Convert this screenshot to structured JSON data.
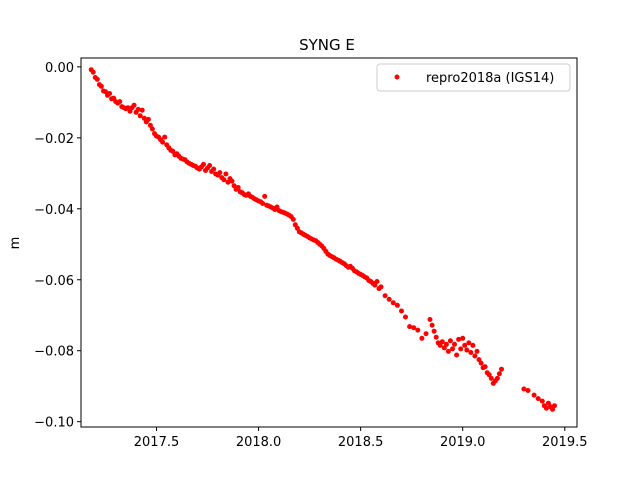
{
  "chart_data": {
    "type": "scatter",
    "title": "SYNG E",
    "xlabel": "",
    "ylabel": "m",
    "xlim": [
      2017.13,
      2019.56
    ],
    "ylim": [
      -0.1015,
      0.0025
    ],
    "legend_position": "top-right",
    "grid": false,
    "marker_color": "#ff0000",
    "x_ticks": [
      2017.5,
      2018.0,
      2018.5,
      2019.0,
      2019.5
    ],
    "x_tick_labels": [
      "2017.5",
      "2018.0",
      "2018.5",
      "2019.0",
      "2019.5"
    ],
    "y_ticks": [
      0.0,
      -0.02,
      -0.04,
      -0.06,
      -0.08,
      -0.1
    ],
    "y_tick_labels": [
      "0.00",
      "−0.02",
      "−0.04",
      "−0.06",
      "−0.08",
      "−0.10"
    ],
    "series": [
      {
        "name": "repro2018a (IGS14)",
        "color": "#ff0000",
        "x": [
          2017.18,
          2017.19,
          2017.2,
          2017.21,
          2017.22,
          2017.23,
          2017.24,
          2017.25,
          2017.26,
          2017.27,
          2017.28,
          2017.29,
          2017.3,
          2017.31,
          2017.32,
          2017.33,
          2017.34,
          2017.35,
          2017.36,
          2017.37,
          2017.38,
          2017.39,
          2017.4,
          2017.41,
          2017.42,
          2017.43,
          2017.44,
          2017.45,
          2017.46,
          2017.47,
          2017.48,
          2017.49,
          2017.5,
          2017.51,
          2017.52,
          2017.53,
          2017.54,
          2017.55,
          2017.56,
          2017.57,
          2017.58,
          2017.59,
          2017.6,
          2017.61,
          2017.62,
          2017.63,
          2017.64,
          2017.65,
          2017.66,
          2017.67,
          2017.68,
          2017.69,
          2017.7,
          2017.71,
          2017.72,
          2017.73,
          2017.74,
          2017.75,
          2017.76,
          2017.77,
          2017.78,
          2017.79,
          2017.8,
          2017.81,
          2017.82,
          2017.83,
          2017.84,
          2017.85,
          2017.86,
          2017.87,
          2017.88,
          2017.89,
          2017.9,
          2017.91,
          2017.92,
          2017.93,
          2017.94,
          2017.95,
          2017.96,
          2017.97,
          2017.98,
          2017.99,
          2018.0,
          2018.01,
          2018.02,
          2018.03,
          2018.04,
          2018.05,
          2018.06,
          2018.07,
          2018.08,
          2018.09,
          2018.1,
          2018.11,
          2018.12,
          2018.13,
          2018.14,
          2018.15,
          2018.16,
          2018.17,
          2018.18,
          2018.19,
          2018.2,
          2018.21,
          2018.22,
          2018.23,
          2018.24,
          2018.25,
          2018.26,
          2018.27,
          2018.28,
          2018.29,
          2018.3,
          2018.31,
          2018.32,
          2018.33,
          2018.34,
          2018.35,
          2018.36,
          2018.37,
          2018.38,
          2018.39,
          2018.4,
          2018.41,
          2018.42,
          2018.43,
          2018.44,
          2018.45,
          2018.46,
          2018.47,
          2018.48,
          2018.49,
          2018.5,
          2018.51,
          2018.52,
          2018.53,
          2018.54,
          2018.55,
          2018.56,
          2018.57,
          2018.58,
          2018.59,
          2018.6,
          2018.62,
          2018.64,
          2018.66,
          2018.68,
          2018.7,
          2018.72,
          2018.74,
          2018.76,
          2018.78,
          2018.8,
          2018.82,
          2018.84,
          2018.85,
          2018.86,
          2018.87,
          2018.88,
          2018.89,
          2018.9,
          2018.91,
          2018.92,
          2018.93,
          2018.94,
          2018.95,
          2018.96,
          2018.97,
          2018.98,
          2018.99,
          2019.0,
          2019.01,
          2019.02,
          2019.03,
          2019.04,
          2019.05,
          2019.06,
          2019.07,
          2019.08,
          2019.09,
          2019.1,
          2019.11,
          2019.12,
          2019.13,
          2019.14,
          2019.15,
          2019.16,
          2019.17,
          2019.18,
          2019.19,
          2019.3,
          2019.32,
          2019.35,
          2019.37,
          2019.39,
          2019.4,
          2019.41,
          2019.42,
          2019.43,
          2019.44,
          2019.45
        ],
        "y": [
          -0.0008,
          -0.0015,
          -0.003,
          -0.0035,
          -0.005,
          -0.0055,
          -0.0068,
          -0.007,
          -0.008,
          -0.0075,
          -0.009,
          -0.0088,
          -0.0098,
          -0.0102,
          -0.0098,
          -0.0112,
          -0.0115,
          -0.0118,
          -0.0115,
          -0.0125,
          -0.0115,
          -0.0108,
          -0.0128,
          -0.012,
          -0.0138,
          -0.0122,
          -0.0145,
          -0.0155,
          -0.0148,
          -0.0165,
          -0.0175,
          -0.0188,
          -0.0195,
          -0.0198,
          -0.0205,
          -0.0212,
          -0.0198,
          -0.022,
          -0.0228,
          -0.0235,
          -0.0238,
          -0.0248,
          -0.0245,
          -0.0252,
          -0.0258,
          -0.026,
          -0.0262,
          -0.0268,
          -0.0272,
          -0.0275,
          -0.0278,
          -0.028,
          -0.0285,
          -0.0288,
          -0.0282,
          -0.0275,
          -0.0292,
          -0.0285,
          -0.0278,
          -0.0295,
          -0.0288,
          -0.0302,
          -0.0305,
          -0.0298,
          -0.0312,
          -0.0318,
          -0.0302,
          -0.0325,
          -0.0315,
          -0.0322,
          -0.0335,
          -0.0345,
          -0.034,
          -0.0352,
          -0.0355,
          -0.036,
          -0.0362,
          -0.0358,
          -0.0365,
          -0.0368,
          -0.0372,
          -0.0375,
          -0.0378,
          -0.038,
          -0.0385,
          -0.0365,
          -0.039,
          -0.0392,
          -0.0395,
          -0.0398,
          -0.0402,
          -0.0395,
          -0.0405,
          -0.0408,
          -0.041,
          -0.0412,
          -0.0415,
          -0.0418,
          -0.0422,
          -0.043,
          -0.0445,
          -0.0455,
          -0.0465,
          -0.0468,
          -0.0472,
          -0.0475,
          -0.0478,
          -0.0482,
          -0.0485,
          -0.0488,
          -0.049,
          -0.0495,
          -0.05,
          -0.0505,
          -0.0512,
          -0.052,
          -0.0528,
          -0.0532,
          -0.0535,
          -0.0538,
          -0.0542,
          -0.0545,
          -0.0548,
          -0.0552,
          -0.0555,
          -0.056,
          -0.0565,
          -0.0562,
          -0.0568,
          -0.0575,
          -0.0578,
          -0.0582,
          -0.0585,
          -0.0588,
          -0.0592,
          -0.0595,
          -0.0602,
          -0.0605,
          -0.061,
          -0.0615,
          -0.0605,
          -0.0625,
          -0.062,
          -0.0645,
          -0.0655,
          -0.0665,
          -0.0672,
          -0.0688,
          -0.0705,
          -0.0732,
          -0.0735,
          -0.0742,
          -0.0765,
          -0.0752,
          -0.0712,
          -0.0728,
          -0.0745,
          -0.0762,
          -0.0778,
          -0.0785,
          -0.0775,
          -0.0792,
          -0.0782,
          -0.0802,
          -0.0772,
          -0.0795,
          -0.0782,
          -0.0812,
          -0.0768,
          -0.0795,
          -0.0765,
          -0.0785,
          -0.0798,
          -0.0778,
          -0.0805,
          -0.0785,
          -0.0815,
          -0.0802,
          -0.0825,
          -0.0835,
          -0.0848,
          -0.0845,
          -0.0862,
          -0.0868,
          -0.0878,
          -0.0892,
          -0.0885,
          -0.0878,
          -0.0865,
          -0.0852,
          -0.0908,
          -0.0912,
          -0.0925,
          -0.0935,
          -0.0942,
          -0.0955,
          -0.0962,
          -0.0948,
          -0.0958,
          -0.0965,
          -0.0955
        ]
      }
    ]
  }
}
